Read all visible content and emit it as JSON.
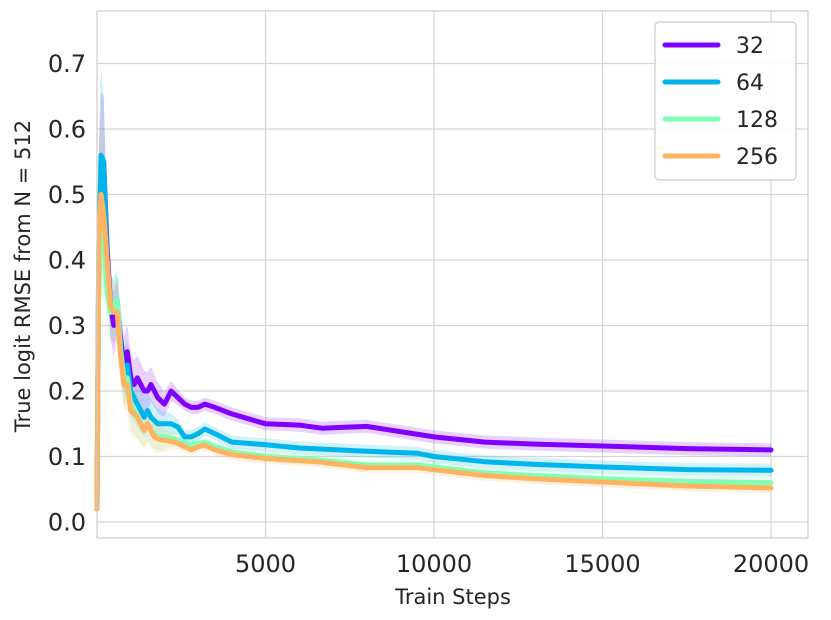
{
  "chart_data": {
    "type": "line",
    "title": "",
    "xlabel": "Train Steps",
    "ylabel": "True logit RMSE from N = 512",
    "xlim": [
      0,
      20000
    ],
    "ylim": [
      -0.03,
      0.78
    ],
    "xticks": [
      5000,
      10000,
      15000,
      20000
    ],
    "yticks": [
      0.0,
      0.1,
      0.2,
      0.3,
      0.4,
      0.5,
      0.6,
      0.7
    ],
    "ytick_labels": [
      "0.0",
      "0.1",
      "0.2",
      "0.3",
      "0.4",
      "0.5",
      "0.6",
      "0.7"
    ],
    "grid": true,
    "legend_position": "top-right",
    "series": [
      {
        "name": "32",
        "color": "#8000ff",
        "x": [
          0,
          50,
          120,
          200,
          300,
          400,
          500,
          600,
          700,
          800,
          900,
          1000,
          1100,
          1200,
          1300,
          1400,
          1500,
          1600,
          1700,
          1800,
          1900,
          2000,
          2100,
          2200,
          2400,
          2600,
          2800,
          3000,
          3200,
          3500,
          4000,
          5000,
          6000,
          6700,
          7000,
          8000,
          9000,
          10000,
          11500,
          13000,
          15000,
          17500,
          20000
        ],
        "y": [
          0.02,
          0.38,
          0.52,
          0.55,
          0.42,
          0.33,
          0.3,
          0.33,
          0.28,
          0.24,
          0.26,
          0.22,
          0.21,
          0.22,
          0.21,
          0.2,
          0.2,
          0.21,
          0.2,
          0.19,
          0.185,
          0.18,
          0.19,
          0.2,
          0.19,
          0.18,
          0.175,
          0.175,
          0.18,
          0.175,
          0.165,
          0.15,
          0.148,
          0.143,
          0.144,
          0.146,
          0.138,
          0.13,
          0.122,
          0.119,
          0.116,
          0.112,
          0.11
        ],
        "band": 0.025
      },
      {
        "name": "64",
        "color": "#00b5eb",
        "x": [
          0,
          50,
          120,
          200,
          300,
          400,
          500,
          600,
          700,
          800,
          900,
          1000,
          1100,
          1200,
          1300,
          1400,
          1500,
          1600,
          1700,
          1800,
          1900,
          2000,
          2200,
          2400,
          2600,
          2800,
          3000,
          3200,
          3500,
          4000,
          5000,
          6000,
          8000,
          9500,
          10000,
          11500,
          13000,
          15000,
          17500,
          20000
        ],
        "y": [
          0.02,
          0.4,
          0.56,
          0.55,
          0.4,
          0.33,
          0.32,
          0.34,
          0.27,
          0.22,
          0.24,
          0.2,
          0.19,
          0.18,
          0.17,
          0.16,
          0.17,
          0.16,
          0.155,
          0.15,
          0.15,
          0.15,
          0.15,
          0.145,
          0.13,
          0.13,
          0.135,
          0.142,
          0.135,
          0.122,
          0.118,
          0.113,
          0.108,
          0.105,
          0.1,
          0.092,
          0.088,
          0.084,
          0.08,
          0.079
        ],
        "band": 0.025
      },
      {
        "name": "128",
        "color": "#80ffb4",
        "x": [
          0,
          50,
          120,
          200,
          300,
          400,
          500,
          600,
          700,
          800,
          900,
          1000,
          1100,
          1200,
          1300,
          1400,
          1500,
          1600,
          1700,
          1800,
          1900,
          2000,
          2200,
          2400,
          2600,
          2800,
          3000,
          3200,
          3500,
          4000,
          5000,
          6500,
          8000,
          9500,
          10000,
          11500,
          13000,
          15000,
          17500,
          20000
        ],
        "y": [
          0.02,
          0.35,
          0.47,
          0.44,
          0.35,
          0.32,
          0.33,
          0.34,
          0.26,
          0.22,
          0.22,
          0.18,
          0.17,
          0.16,
          0.15,
          0.14,
          0.15,
          0.14,
          0.135,
          0.13,
          0.13,
          0.13,
          0.128,
          0.125,
          0.12,
          0.118,
          0.12,
          0.122,
          0.115,
          0.107,
          0.1,
          0.095,
          0.087,
          0.087,
          0.084,
          0.075,
          0.071,
          0.066,
          0.062,
          0.06
        ],
        "band": 0.02
      },
      {
        "name": "256",
        "color": "#ffb360",
        "x": [
          0,
          50,
          120,
          200,
          300,
          400,
          500,
          600,
          700,
          800,
          900,
          1000,
          1100,
          1200,
          1300,
          1400,
          1500,
          1600,
          1700,
          1800,
          1900,
          2000,
          2200,
          2400,
          2600,
          2800,
          3000,
          3200,
          3500,
          4000,
          5000,
          6500,
          8000,
          9500,
          10000,
          11500,
          13000,
          15000,
          17500,
          20000
        ],
        "y": [
          0.02,
          0.42,
          0.5,
          0.47,
          0.4,
          0.33,
          0.32,
          0.32,
          0.25,
          0.21,
          0.21,
          0.17,
          0.165,
          0.16,
          0.15,
          0.14,
          0.15,
          0.14,
          0.13,
          0.127,
          0.125,
          0.125,
          0.123,
          0.12,
          0.115,
          0.11,
          0.115,
          0.117,
          0.11,
          0.103,
          0.097,
          0.092,
          0.083,
          0.083,
          0.08,
          0.071,
          0.066,
          0.061,
          0.055,
          0.052
        ],
        "band": 0.02
      }
    ]
  }
}
